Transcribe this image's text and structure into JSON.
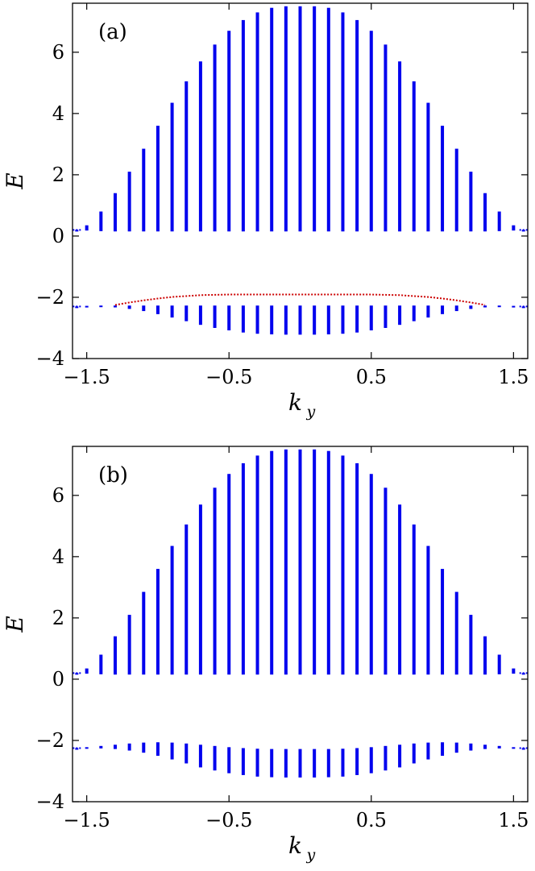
{
  "chart_data": [
    {
      "type": "scatter",
      "panel_label": "(a)",
      "xlabel": "k",
      "xlabel_sub": "y",
      "ylabel": "E",
      "xlim": [
        -1.6,
        1.6
      ],
      "ylim": [
        -4,
        7.6
      ],
      "xticks": [
        -1.5,
        -0.5,
        0.5,
        1.5
      ],
      "xtick_labels": [
        "−1.5",
        "−0.5",
        "0.5",
        "1.5"
      ],
      "yticks": [
        -4,
        -2,
        0,
        2,
        4,
        6
      ],
      "ytick_labels": [
        "−4",
        "−2",
        "0",
        "2",
        "4",
        "6"
      ],
      "grid": false,
      "colors": {
        "bulk": "#0000ee",
        "edge": "#cc0000"
      },
      "bulk_bands": [
        {
          "name": "upper",
          "x": [
            -1.57,
            -1.5,
            -1.4,
            -1.3,
            -1.2,
            -1.1,
            -1.0,
            -0.9,
            -0.8,
            -0.7,
            -0.6,
            -0.5,
            -0.4,
            -0.3,
            -0.2,
            -0.1,
            0.0,
            0.1,
            0.2,
            0.3,
            0.4,
            0.5,
            0.6,
            0.7,
            0.8,
            0.9,
            1.0,
            1.1,
            1.2,
            1.3,
            1.4,
            1.5,
            1.57
          ],
          "y_min": [
            0.2,
            0.18,
            0.16,
            0.15,
            0.15,
            0.15,
            0.15,
            0.15,
            0.15,
            0.15,
            0.15,
            0.15,
            0.15,
            0.15,
            0.15,
            0.15,
            0.15,
            0.15,
            0.15,
            0.15,
            0.15,
            0.15,
            0.15,
            0.15,
            0.15,
            0.15,
            0.15,
            0.15,
            0.15,
            0.15,
            0.16,
            0.18,
            0.2
          ],
          "y_max": [
            0.2,
            0.35,
            0.8,
            1.4,
            2.1,
            2.85,
            3.6,
            4.35,
            5.05,
            5.7,
            6.25,
            6.7,
            7.05,
            7.3,
            7.45,
            7.5,
            7.5,
            7.5,
            7.45,
            7.3,
            7.05,
            6.7,
            6.25,
            5.7,
            5.05,
            4.35,
            3.6,
            2.85,
            2.1,
            1.4,
            0.8,
            0.35,
            0.2
          ]
        },
        {
          "name": "lower",
          "x": [
            -1.57,
            -1.5,
            -1.4,
            -1.3,
            -1.2,
            -1.1,
            -1.0,
            -0.9,
            -0.8,
            -0.7,
            -0.6,
            -0.5,
            -0.4,
            -0.3,
            -0.2,
            -0.1,
            0.0,
            0.1,
            0.2,
            0.3,
            0.4,
            0.5,
            0.6,
            0.7,
            0.8,
            0.9,
            1.0,
            1.1,
            1.2,
            1.3,
            1.4,
            1.5,
            1.57
          ],
          "y_min": [
            -2.3,
            -2.3,
            -2.31,
            -2.33,
            -2.38,
            -2.45,
            -2.55,
            -2.66,
            -2.78,
            -2.9,
            -3.0,
            -3.08,
            -3.15,
            -3.19,
            -3.21,
            -3.22,
            -3.22,
            -3.22,
            -3.21,
            -3.19,
            -3.15,
            -3.08,
            -3.0,
            -2.9,
            -2.78,
            -2.66,
            -2.55,
            -2.45,
            -2.38,
            -2.33,
            -2.31,
            -2.3,
            -2.3
          ],
          "y_max": [
            -2.3,
            -2.28,
            -2.27,
            -2.27,
            -2.27,
            -2.27,
            -2.27,
            -2.27,
            -2.27,
            -2.27,
            -2.27,
            -2.27,
            -2.27,
            -2.27,
            -2.27,
            -2.27,
            -2.27,
            -2.27,
            -2.27,
            -2.27,
            -2.27,
            -2.27,
            -2.27,
            -2.27,
            -2.27,
            -2.27,
            -2.27,
            -2.27,
            -2.27,
            -2.27,
            -2.27,
            -2.28,
            -2.3
          ]
        }
      ],
      "edge_states": {
        "x": [
          -1.3,
          -1.2,
          -1.1,
          -1.0,
          -0.9,
          -0.8,
          -0.7,
          -0.6,
          -0.5,
          -0.4,
          -0.3,
          -0.2,
          -0.1,
          0.0,
          0.1,
          0.2,
          0.3,
          0.4,
          0.5,
          0.6,
          0.7,
          0.8,
          0.9,
          1.0,
          1.1,
          1.2,
          1.3
        ],
        "y": [
          -2.25,
          -2.17,
          -2.1,
          -2.04,
          -1.99,
          -1.96,
          -1.93,
          -1.92,
          -1.91,
          -1.91,
          -1.91,
          -1.91,
          -1.91,
          -1.91,
          -1.91,
          -1.91,
          -1.91,
          -1.91,
          -1.91,
          -1.92,
          -1.93,
          -1.96,
          -1.99,
          -2.04,
          -2.1,
          -2.17,
          -2.25
        ]
      }
    },
    {
      "type": "scatter",
      "panel_label": "(b)",
      "xlabel": "k",
      "xlabel_sub": "y",
      "ylabel": "E",
      "xlim": [
        -1.6,
        1.6
      ],
      "ylim": [
        -4,
        7.6
      ],
      "xticks": [
        -1.5,
        -0.5,
        0.5,
        1.5
      ],
      "xtick_labels": [
        "−1.5",
        "−0.5",
        "0.5",
        "1.5"
      ],
      "yticks": [
        -4,
        -2,
        0,
        2,
        4,
        6
      ],
      "ytick_labels": [
        "−4",
        "−2",
        "0",
        "2",
        "4",
        "6"
      ],
      "grid": false,
      "colors": {
        "bulk": "#0000ee"
      },
      "bulk_bands": [
        {
          "name": "upper",
          "x": [
            -1.57,
            -1.5,
            -1.4,
            -1.3,
            -1.2,
            -1.1,
            -1.0,
            -0.9,
            -0.8,
            -0.7,
            -0.6,
            -0.5,
            -0.4,
            -0.3,
            -0.2,
            -0.1,
            0.0,
            0.1,
            0.2,
            0.3,
            0.4,
            0.5,
            0.6,
            0.7,
            0.8,
            0.9,
            1.0,
            1.1,
            1.2,
            1.3,
            1.4,
            1.5,
            1.57
          ],
          "y_min": [
            0.2,
            0.18,
            0.16,
            0.15,
            0.15,
            0.15,
            0.15,
            0.15,
            0.15,
            0.15,
            0.15,
            0.15,
            0.15,
            0.15,
            0.15,
            0.15,
            0.15,
            0.15,
            0.15,
            0.15,
            0.15,
            0.15,
            0.15,
            0.15,
            0.15,
            0.15,
            0.15,
            0.15,
            0.15,
            0.15,
            0.16,
            0.18,
            0.2
          ],
          "y_max": [
            0.2,
            0.35,
            0.8,
            1.4,
            2.1,
            2.85,
            3.6,
            4.35,
            5.05,
            5.7,
            6.25,
            6.7,
            7.05,
            7.3,
            7.45,
            7.5,
            7.5,
            7.5,
            7.45,
            7.3,
            7.05,
            6.7,
            6.25,
            5.7,
            5.05,
            4.35,
            3.6,
            2.85,
            2.1,
            1.4,
            0.8,
            0.35,
            0.2
          ]
        },
        {
          "name": "lower",
          "x": [
            -1.57,
            -1.5,
            -1.4,
            -1.3,
            -1.2,
            -1.1,
            -1.0,
            -0.9,
            -0.8,
            -0.7,
            -0.6,
            -0.5,
            -0.4,
            -0.3,
            -0.2,
            -0.1,
            0.0,
            0.1,
            0.2,
            0.3,
            0.4,
            0.5,
            0.6,
            0.7,
            0.8,
            0.9,
            1.0,
            1.1,
            1.2,
            1.3,
            1.4,
            1.5,
            1.57
          ],
          "y_min": [
            -2.25,
            -2.25,
            -2.26,
            -2.28,
            -2.33,
            -2.4,
            -2.5,
            -2.62,
            -2.75,
            -2.88,
            -2.98,
            -3.07,
            -3.13,
            -3.18,
            -3.2,
            -3.21,
            -3.21,
            -3.21,
            -3.2,
            -3.18,
            -3.13,
            -3.07,
            -2.98,
            -2.88,
            -2.75,
            -2.62,
            -2.5,
            -2.4,
            -2.33,
            -2.28,
            -2.26,
            -2.25,
            -2.25
          ],
          "y_max": [
            -2.25,
            -2.22,
            -2.18,
            -2.14,
            -2.1,
            -2.07,
            -2.06,
            -2.07,
            -2.1,
            -2.14,
            -2.18,
            -2.22,
            -2.25,
            -2.27,
            -2.28,
            -2.28,
            -2.28,
            -2.28,
            -2.28,
            -2.27,
            -2.25,
            -2.22,
            -2.18,
            -2.14,
            -2.1,
            -2.07,
            -2.06,
            -2.07,
            -2.1,
            -2.14,
            -2.18,
            -2.22,
            -2.25
          ]
        }
      ]
    }
  ]
}
